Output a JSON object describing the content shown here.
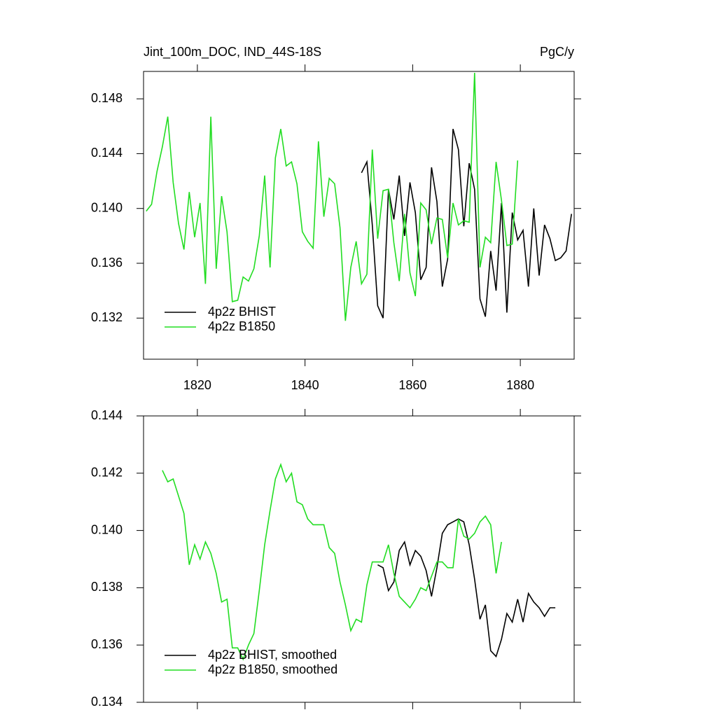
{
  "chart_data": [
    {
      "type": "line",
      "title": "Jint_100m_DOC, IND_44S-18S",
      "unit_label": "PgC/y",
      "xlim": [
        1810,
        1890
      ],
      "xticks": [
        1820,
        1840,
        1860,
        1880
      ],
      "show_xtick_labels": true,
      "ylim": [
        0.129,
        0.15
      ],
      "yticks": [
        0.132,
        0.136,
        {
          "value": 0.14,
          "label": "0.140"
        },
        0.144,
        0.148
      ],
      "legend": "lower-left",
      "series": [
        {
          "name": "4p2z BHIST",
          "color": "#000000",
          "x": [
            1850.5,
            1851.5,
            1852.5,
            1853.5,
            1854.5,
            1855.5,
            1856.5,
            1857.5,
            1858.5,
            1859.5,
            1860.5,
            1861.5,
            1862.5,
            1863.5,
            1864.5,
            1865.5,
            1866.5,
            1867.5,
            1868.5,
            1869.5,
            1870.5,
            1871.5,
            1872.5,
            1873.5,
            1874.5,
            1875.5,
            1876.5,
            1877.5,
            1878.5,
            1879.5,
            1880.5,
            1881.5,
            1882.5,
            1883.5,
            1884.5,
            1885.5,
            1886.5,
            1887.5,
            1888.5,
            1889.5
          ],
          "values": [
            0.1426,
            0.1434,
            0.1388,
            0.1329,
            0.132,
            0.1414,
            0.1392,
            0.1424,
            0.138,
            0.1419,
            0.1397,
            0.1348,
            0.1357,
            0.143,
            0.1405,
            0.1343,
            0.1363,
            0.1458,
            0.1443,
            0.1387,
            0.1433,
            0.1414,
            0.1334,
            0.1321,
            0.1369,
            0.134,
            0.1404,
            0.1324,
            0.1397,
            0.1377,
            0.1384,
            0.1343,
            0.14,
            0.1351,
            0.1388,
            0.1378,
            0.1362,
            0.1364,
            0.1369,
            0.1396
          ]
        },
        {
          "name": "4p2z B1850",
          "color": "#22dd22",
          "x": [
            1810.5,
            1811.5,
            1812.5,
            1813.5,
            1814.5,
            1815.5,
            1816.5,
            1817.5,
            1818.5,
            1819.5,
            1820.5,
            1821.5,
            1822.5,
            1823.5,
            1824.5,
            1825.5,
            1826.5,
            1827.5,
            1828.5,
            1829.5,
            1830.5,
            1831.5,
            1832.5,
            1833.5,
            1834.5,
            1835.5,
            1836.5,
            1837.5,
            1838.5,
            1839.5,
            1840.5,
            1841.5,
            1842.5,
            1843.5,
            1844.5,
            1845.5,
            1846.5,
            1847.5,
            1848.5,
            1849.5,
            1850.5,
            1851.5,
            1852.5,
            1853.5,
            1854.5,
            1855.5,
            1856.5,
            1857.5,
            1858.5,
            1859.5,
            1860.5,
            1861.5,
            1862.5,
            1863.5,
            1864.5,
            1865.5,
            1866.5,
            1867.5,
            1868.5,
            1869.5,
            1870.5,
            1871.5,
            1872.5,
            1873.5,
            1874.5,
            1875.5,
            1876.5,
            1877.5,
            1878.5,
            1879.5
          ],
          "values": [
            0.1398,
            0.1403,
            0.1427,
            0.1445,
            0.1467,
            0.1419,
            0.1389,
            0.137,
            0.1412,
            0.1379,
            0.1404,
            0.1345,
            0.1467,
            0.1356,
            0.1409,
            0.1383,
            0.1332,
            0.1333,
            0.135,
            0.1347,
            0.1356,
            0.138,
            0.1424,
            0.1357,
            0.1437,
            0.1458,
            0.1431,
            0.1434,
            0.1418,
            0.1383,
            0.1376,
            0.1371,
            0.1449,
            0.1394,
            0.1422,
            0.1418,
            0.1386,
            0.1318,
            0.1357,
            0.1376,
            0.1345,
            0.1352,
            0.1443,
            0.1378,
            0.1413,
            0.1414,
            0.1375,
            0.1347,
            0.1396,
            0.1353,
            0.1336,
            0.1404,
            0.1399,
            0.1374,
            0.1393,
            0.1392,
            0.1364,
            0.1404,
            0.1388,
            0.1391,
            0.139,
            0.1499,
            0.1357,
            0.1379,
            0.1375,
            0.1434,
            0.1406,
            0.1373,
            0.1374,
            0.1435
          ]
        }
      ]
    },
    {
      "type": "line",
      "xlim": [
        1810,
        1890
      ],
      "xticks": [
        1820,
        1840,
        1860,
        1880
      ],
      "show_xtick_labels": false,
      "ylim": [
        0.134,
        0.144
      ],
      "yticks": [
        0.134,
        0.136,
        0.138,
        {
          "value": 0.14,
          "label": "0.140"
        },
        0.142,
        0.144
      ],
      "legend": "lower-left",
      "series": [
        {
          "name": "4p2z BHIST, smoothed",
          "color": "#000000",
          "x": [
            1853.5,
            1854.5,
            1855.5,
            1856.5,
            1857.5,
            1858.5,
            1859.5,
            1860.5,
            1861.5,
            1862.5,
            1863.5,
            1864.5,
            1865.5,
            1866.5,
            1867.5,
            1868.5,
            1869.5,
            1870.5,
            1871.5,
            1872.5,
            1873.5,
            1874.5,
            1875.5,
            1876.5,
            1877.5,
            1878.5,
            1879.5,
            1880.5,
            1881.5,
            1882.5,
            1883.5,
            1884.5,
            1885.5,
            1886.5
          ],
          "values": [
            0.1388,
            0.1387,
            0.1379,
            0.1382,
            0.1393,
            0.1396,
            0.1388,
            0.1393,
            0.1391,
            0.1386,
            0.1377,
            0.1387,
            0.1399,
            0.1402,
            0.1403,
            0.1404,
            0.1403,
            0.1395,
            0.1383,
            0.1369,
            0.1374,
            0.1358,
            0.1356,
            0.1362,
            0.1371,
            0.1368,
            0.1376,
            0.1368,
            0.1378,
            0.1375,
            0.1373,
            0.137,
            0.1373,
            0.1373
          ]
        },
        {
          "name": "4p2z B1850, smoothed",
          "color": "#22dd22",
          "x": [
            1813.5,
            1814.5,
            1815.5,
            1816.5,
            1817.5,
            1818.5,
            1819.5,
            1820.5,
            1821.5,
            1822.5,
            1823.5,
            1824.5,
            1825.5,
            1826.5,
            1827.5,
            1828.5,
            1829.5,
            1830.5,
            1831.5,
            1832.5,
            1833.5,
            1834.5,
            1835.5,
            1836.5,
            1837.5,
            1838.5,
            1839.5,
            1840.5,
            1841.5,
            1842.5,
            1843.5,
            1844.5,
            1845.5,
            1846.5,
            1847.5,
            1848.5,
            1849.5,
            1850.5,
            1851.5,
            1852.5,
            1853.5,
            1854.5,
            1855.5,
            1856.5,
            1857.5,
            1858.5,
            1859.5,
            1860.5,
            1861.5,
            1862.5,
            1863.5,
            1864.5,
            1865.5,
            1866.5,
            1867.5,
            1868.5,
            1869.5,
            1870.5,
            1871.5,
            1872.5,
            1873.5,
            1874.5,
            1875.5,
            1876.5
          ],
          "values": [
            0.1421,
            0.1417,
            0.1418,
            0.1412,
            0.1406,
            0.1388,
            0.1395,
            0.139,
            0.1396,
            0.1392,
            0.1385,
            0.1375,
            0.1376,
            0.1359,
            0.1359,
            0.1355,
            0.136,
            0.1364,
            0.1379,
            0.1395,
            0.1407,
            0.1418,
            0.1423,
            0.1417,
            0.142,
            0.141,
            0.1409,
            0.1404,
            0.1402,
            0.1402,
            0.1402,
            0.1394,
            0.1392,
            0.1382,
            0.1374,
            0.1365,
            0.1369,
            0.1368,
            0.1381,
            0.1389,
            0.1389,
            0.1389,
            0.1395,
            0.1385,
            0.1377,
            0.1375,
            0.1373,
            0.1376,
            0.138,
            0.1379,
            0.1384,
            0.1389,
            0.1389,
            0.1387,
            0.1387,
            0.1404,
            0.1398,
            0.1397,
            0.1399,
            0.1403,
            0.1405,
            0.1402,
            0.1385,
            0.1396
          ]
        }
      ]
    }
  ]
}
